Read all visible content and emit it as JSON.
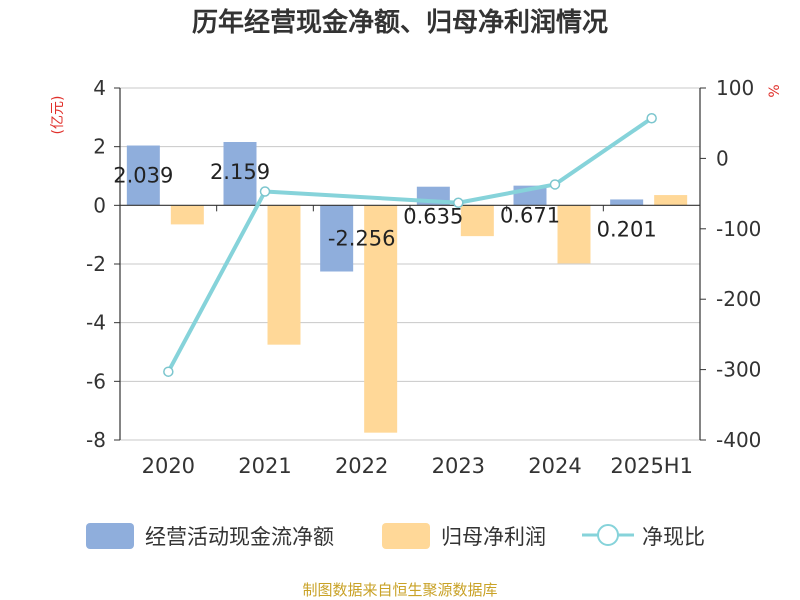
{
  "chart_data": {
    "type": "bar",
    "title": "历年经营现金净额、归母净利润情况",
    "y_left_unit": "(亿元)",
    "y_right_unit": "%",
    "categories": [
      "2020",
      "2021",
      "2022",
      "2023",
      "2024",
      "2025H1"
    ],
    "y_left_ticks": [
      "4",
      "2",
      "0",
      "-2",
      "-4",
      "-6",
      "-8"
    ],
    "y_right_ticks": [
      "100",
      "0",
      "-100",
      "-200",
      "-300",
      "-400"
    ],
    "ylim_left": [
      -8,
      4
    ],
    "ylim_right": [
      -400,
      100
    ],
    "series": [
      {
        "name": "经营活动现金流净额",
        "axis": "left",
        "kind": "bar",
        "values": [
          2.039,
          2.159,
          -2.256,
          0.635,
          0.671,
          0.201
        ],
        "labels": [
          "2.039",
          "2.159",
          "-2.256",
          "0.635",
          "0.671",
          "0.201"
        ],
        "color": "#8faedc"
      },
      {
        "name": "归母净利润",
        "axis": "left",
        "kind": "bar",
        "values": [
          -0.65,
          -4.75,
          -7.75,
          -1.05,
          -1.98,
          0.35
        ],
        "color": "#ffd898"
      },
      {
        "name": "净现比",
        "axis": "right",
        "kind": "line",
        "values": [
          -303,
          -47,
          null,
          -63,
          -37,
          57
        ],
        "color": "#86d3da"
      }
    ],
    "grid": true,
    "legend_position": "bottom"
  },
  "footer": {
    "source": "制图数据来自恒生聚源数据库",
    "source_color": "#c9a227"
  }
}
